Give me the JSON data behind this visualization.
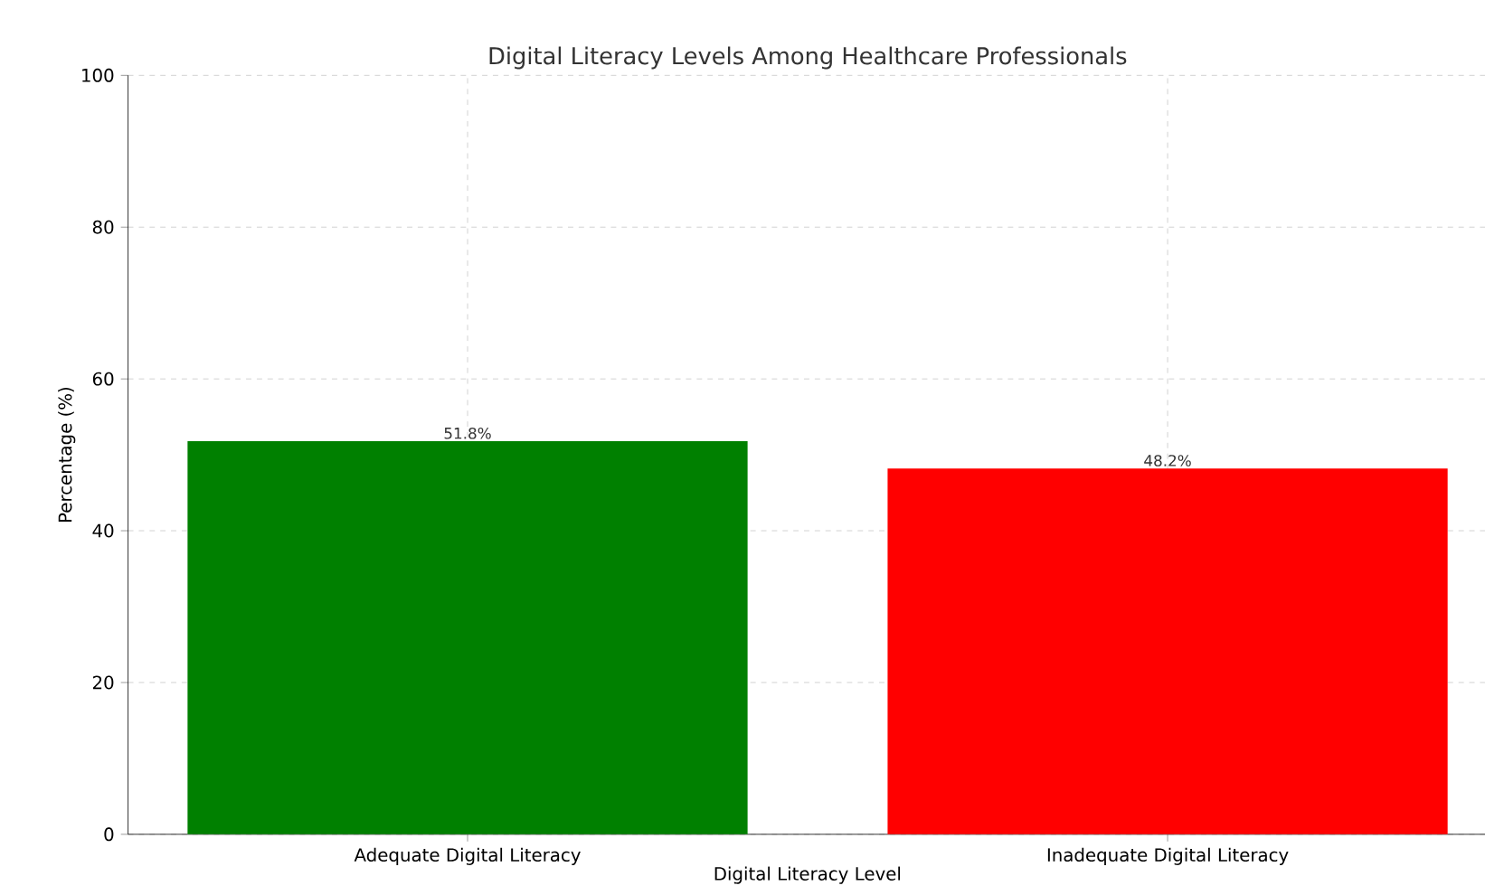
{
  "chart_data": {
    "type": "bar",
    "title": "Digital Literacy Levels Among Healthcare Professionals",
    "xlabel": "Digital Literacy Level",
    "ylabel": "Percentage (%)",
    "categories": [
      "Adequate Digital Literacy",
      "Inadequate Digital Literacy"
    ],
    "values": [
      51.8,
      48.2
    ],
    "colors": [
      "#008000",
      "#ff0000"
    ],
    "value_labels": [
      "51.8%",
      "48.2%"
    ],
    "ylim": [
      0,
      100
    ],
    "yticks": [
      0,
      20,
      40,
      60,
      80,
      100
    ],
    "grid": true
  }
}
